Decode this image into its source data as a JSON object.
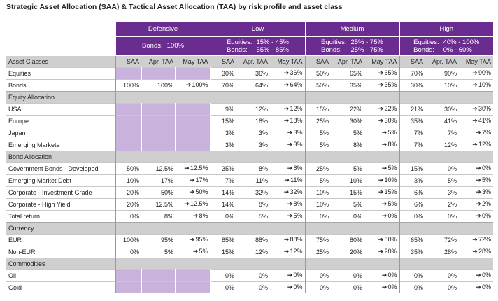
{
  "title": "Strategic Asset Allocation (SAA) & Tactical Asset Allocation (TAA) by risk profile and asset class",
  "profiles": [
    {
      "name": "Defensive",
      "desc_keys": [
        "Bonds:"
      ],
      "desc_vals": [
        "100%"
      ]
    },
    {
      "name": "Low",
      "desc_keys": [
        "Equities:",
        "Bonds:"
      ],
      "desc_vals": [
        "15% - 45%",
        "55% - 85%"
      ]
    },
    {
      "name": "Medium",
      "desc_keys": [
        "Equities:",
        "Bonds:"
      ],
      "desc_vals": [
        "25% - 75%",
        "25% - 75%"
      ]
    },
    {
      "name": "High",
      "desc_keys": [
        "Equities:",
        "Bonds:"
      ],
      "desc_vals": [
        "40% - 100%",
        "0% - 60%"
      ]
    }
  ],
  "col_headers": {
    "asset_classes": "Asset Classes",
    "saa": "SAA",
    "apr": "Apr. TAA",
    "may": "May TAA"
  },
  "arrow_icon": "arrow-right-icon",
  "colors": {
    "header_purple": "#6b2c8f",
    "cell_lavender": "#c9b2db",
    "group_gray": "#cfcfcf"
  },
  "rows": [
    {
      "type": "data",
      "label": "Equities",
      "cells": [
        [
          "",
          "",
          ""
        ],
        [
          "30%",
          "36%",
          "36%"
        ],
        [
          "50%",
          "65%",
          "65%"
        ],
        [
          "70%",
          "90%",
          "90%"
        ]
      ],
      "purple_first": true
    },
    {
      "type": "data",
      "label": "Bonds",
      "cells": [
        [
          "100%",
          "100%",
          "100%"
        ],
        [
          "70%",
          "64%",
          "64%"
        ],
        [
          "50%",
          "35%",
          "35%"
        ],
        [
          "30%",
          "10%",
          "10%"
        ]
      ]
    },
    {
      "type": "group",
      "label": "Equity Allocation"
    },
    {
      "type": "data",
      "label": "USA",
      "cells": [
        [
          "",
          "",
          ""
        ],
        [
          "9%",
          "12%",
          "12%"
        ],
        [
          "15%",
          "22%",
          "22%"
        ],
        [
          "21%",
          "30%",
          "30%"
        ]
      ],
      "purple_first": true
    },
    {
      "type": "data",
      "label": "Europe",
      "cells": [
        [
          "",
          "",
          ""
        ],
        [
          "15%",
          "18%",
          "18%"
        ],
        [
          "25%",
          "30%",
          "30%"
        ],
        [
          "35%",
          "41%",
          "41%"
        ]
      ],
      "purple_first": true
    },
    {
      "type": "data",
      "label": "Japan",
      "cells": [
        [
          "",
          "",
          ""
        ],
        [
          "3%",
          "3%",
          "3%"
        ],
        [
          "5%",
          "5%",
          "5%"
        ],
        [
          "7%",
          "7%",
          "7%"
        ]
      ],
      "purple_first": true
    },
    {
      "type": "data",
      "label": "Emerging Markets",
      "cells": [
        [
          "",
          "",
          ""
        ],
        [
          "3%",
          "3%",
          "3%"
        ],
        [
          "5%",
          "8%",
          "8%"
        ],
        [
          "7%",
          "12%",
          "12%"
        ]
      ],
      "purple_first": true
    },
    {
      "type": "group",
      "label": "Bond Allocation"
    },
    {
      "type": "data",
      "label": "Government Bonds - Developed",
      "cells": [
        [
          "50%",
          "12.5%",
          "12.5%"
        ],
        [
          "35%",
          "8%",
          "8%"
        ],
        [
          "25%",
          "5%",
          "5%"
        ],
        [
          "15%",
          "0%",
          "0%"
        ]
      ]
    },
    {
      "type": "data",
      "label": "Emerging Market Debt",
      "cells": [
        [
          "10%",
          "17%",
          "17%"
        ],
        [
          "7%",
          "11%",
          "11%"
        ],
        [
          "5%",
          "10%",
          "10%"
        ],
        [
          "3%",
          "5%",
          "5%"
        ]
      ]
    },
    {
      "type": "data",
      "label": "Corporate - Investment Grade",
      "cells": [
        [
          "20%",
          "50%",
          "50%"
        ],
        [
          "14%",
          "32%",
          "32%"
        ],
        [
          "10%",
          "15%",
          "15%"
        ],
        [
          "6%",
          "3%",
          "3%"
        ]
      ]
    },
    {
      "type": "data",
      "label": "Corporate - High Yield",
      "cells": [
        [
          "20%",
          "12.5%",
          "12.5%"
        ],
        [
          "14%",
          "8%",
          "8%"
        ],
        [
          "10%",
          "5%",
          "5%"
        ],
        [
          "6%",
          "2%",
          "2%"
        ]
      ]
    },
    {
      "type": "data",
      "label": "Total return",
      "cells": [
        [
          "0%",
          "8%",
          "8%"
        ],
        [
          "0%",
          "5%",
          "5%"
        ],
        [
          "0%",
          "0%",
          "0%"
        ],
        [
          "0%",
          "0%",
          "0%"
        ]
      ]
    },
    {
      "type": "group",
      "label": "Currency"
    },
    {
      "type": "data",
      "label": "EUR",
      "cells": [
        [
          "100%",
          "95%",
          "95%"
        ],
        [
          "85%",
          "88%",
          "88%"
        ],
        [
          "75%",
          "80%",
          "80%"
        ],
        [
          "65%",
          "72%",
          "72%"
        ]
      ]
    },
    {
      "type": "data",
      "label": "Non-EUR",
      "cells": [
        [
          "0%",
          "5%",
          "5%"
        ],
        [
          "15%",
          "12%",
          "12%"
        ],
        [
          "25%",
          "20%",
          "20%"
        ],
        [
          "35%",
          "28%",
          "28%"
        ]
      ]
    },
    {
      "type": "group",
      "label": "Commodities"
    },
    {
      "type": "data",
      "label": "Oil",
      "cells": [
        [
          "",
          "",
          ""
        ],
        [
          "0%",
          "0%",
          "0%"
        ],
        [
          "0%",
          "0%",
          "0%"
        ],
        [
          "0%",
          "0%",
          "0%"
        ]
      ],
      "purple_first": true
    },
    {
      "type": "data",
      "label": "Gold",
      "cells": [
        [
          "",
          "",
          ""
        ],
        [
          "0%",
          "0%",
          "0%"
        ],
        [
          "0%",
          "0%",
          "0%"
        ],
        [
          "0%",
          "0%",
          "0%"
        ]
      ],
      "purple_first": true
    }
  ]
}
